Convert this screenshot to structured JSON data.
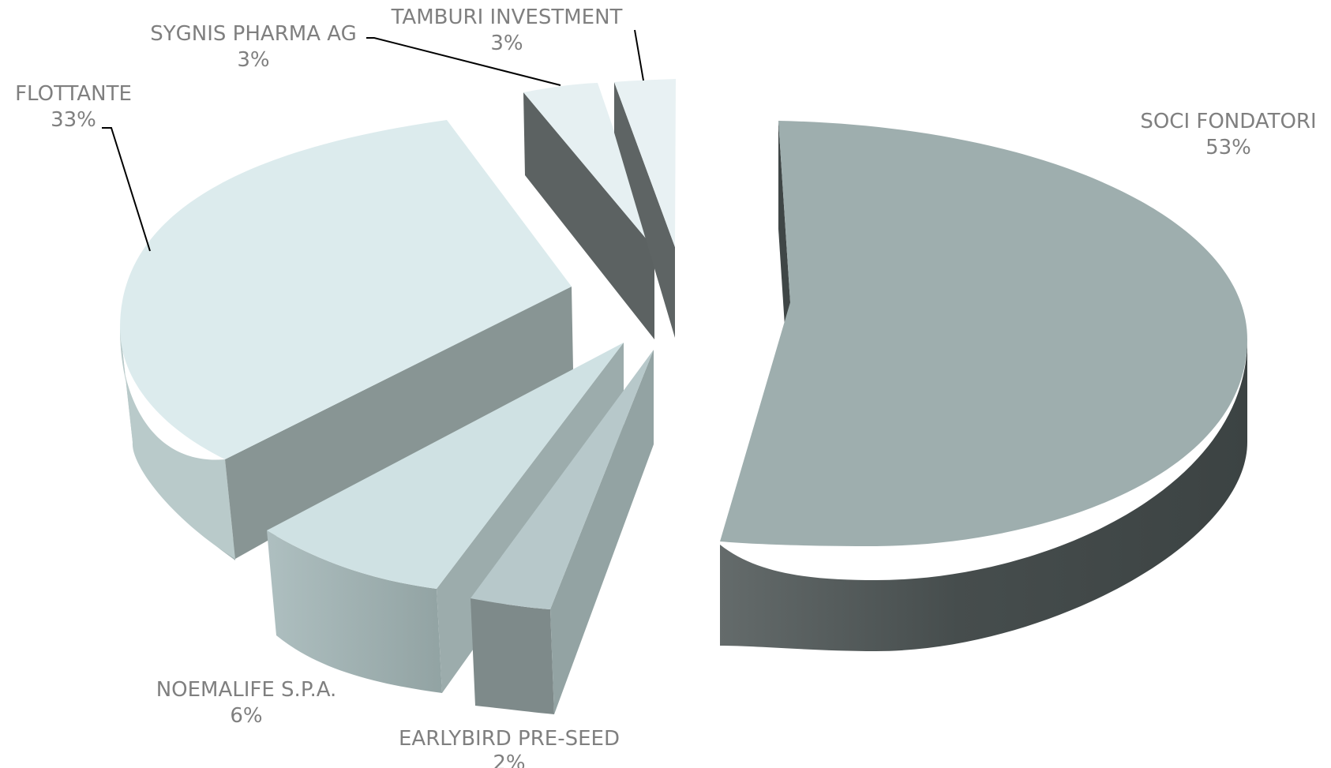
{
  "chart_data": {
    "type": "pie",
    "style": "3d-exploded",
    "title": "",
    "slices": [
      {
        "name": "SOCI FONDATORI",
        "value": 53,
        "value_label": "53%",
        "color": "#9EAEAE",
        "side_color": "#3F4646"
      },
      {
        "name": "EARLYBIRD PRE-SEED",
        "value": 2,
        "value_label": "2%",
        "color": "#B7C8CA",
        "side_color": "#7E8A8A"
      },
      {
        "name": "NOEMALIFE S.P.A.",
        "value": 6,
        "value_label": "6%",
        "color": "#CFE1E3",
        "side_color": "#98A8A8"
      },
      {
        "name": "FLOTTANTE",
        "value": 33,
        "value_label": "33%",
        "color": "#DCEBED",
        "side_color": "#889594"
      },
      {
        "name": "SYGNIS PHARMA AG",
        "value": 3,
        "value_label": "3%",
        "color": "#E6F0F2",
        "side_color": "#5C6262"
      },
      {
        "name": "TAMBURI INVESTMENT",
        "value": 3,
        "value_label": "3%",
        "color": "#E8F1F3",
        "side_color": "#5E6464"
      }
    ],
    "legend": "none",
    "data_labels": "outside-with-leader-lines"
  }
}
